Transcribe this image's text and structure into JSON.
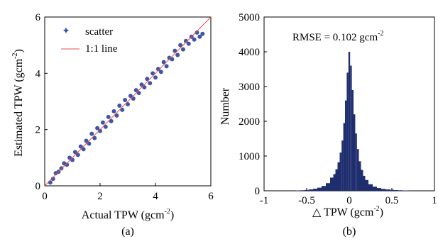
{
  "chart_data": [
    {
      "panel_label": "(a)",
      "type": "scatter",
      "xlabel": "Actual TPW (gcm",
      "xlabel_sup": "-2",
      "xlabel_close": ")",
      "ylabel": "Estimated  TPW (gcm",
      "ylabel_sup": "-2",
      "ylabel_close": ")",
      "xlim": [
        0,
        6
      ],
      "ylim": [
        0,
        6
      ],
      "xticks": [
        "0",
        "2",
        "4",
        "6"
      ],
      "yticks": [
        "0",
        "2",
        "4",
        "6"
      ],
      "legend": {
        "placement": "top-left",
        "entries": [
          "scatter",
          "1:1 line"
        ]
      },
      "series": [
        {
          "name": "scatter",
          "color": "#3f56a6",
          "points": [
            [
              0.2,
              0.12
            ],
            [
              0.3,
              0.25
            ],
            [
              0.4,
              0.45
            ],
            [
              0.5,
              0.5
            ],
            [
              0.6,
              0.62
            ],
            [
              0.7,
              0.8
            ],
            [
              0.8,
              0.75
            ],
            [
              0.9,
              1.0
            ],
            [
              1.0,
              0.92
            ],
            [
              1.1,
              1.2
            ],
            [
              1.2,
              1.1
            ],
            [
              1.3,
              1.4
            ],
            [
              1.4,
              1.3
            ],
            [
              1.5,
              1.6
            ],
            [
              1.6,
              1.5
            ],
            [
              1.7,
              1.85
            ],
            [
              1.8,
              1.7
            ],
            [
              1.9,
              2.05
            ],
            [
              2.0,
              1.95
            ],
            [
              2.1,
              2.25
            ],
            [
              2.2,
              2.1
            ],
            [
              2.3,
              2.45
            ],
            [
              2.4,
              2.3
            ],
            [
              2.5,
              2.65
            ],
            [
              2.6,
              2.5
            ],
            [
              2.7,
              2.85
            ],
            [
              2.8,
              2.7
            ],
            [
              2.9,
              3.05
            ],
            [
              3.0,
              2.9
            ],
            [
              3.1,
              3.2
            ],
            [
              3.2,
              3.1
            ],
            [
              3.3,
              3.4
            ],
            [
              3.4,
              3.3
            ],
            [
              3.5,
              3.6
            ],
            [
              3.6,
              3.5
            ],
            [
              3.7,
              3.8
            ],
            [
              3.8,
              3.65
            ],
            [
              3.9,
              4.0
            ],
            [
              4.0,
              3.85
            ],
            [
              4.1,
              4.15
            ],
            [
              4.2,
              4.05
            ],
            [
              4.3,
              4.4
            ],
            [
              4.4,
              4.25
            ],
            [
              4.5,
              4.55
            ],
            [
              4.6,
              4.5
            ],
            [
              4.7,
              4.8
            ],
            [
              4.8,
              4.65
            ],
            [
              4.9,
              5.0
            ],
            [
              5.0,
              4.85
            ],
            [
              5.1,
              5.15
            ],
            [
              5.2,
              5.05
            ],
            [
              5.3,
              5.3
            ],
            [
              5.4,
              5.2
            ],
            [
              5.5,
              5.45
            ],
            [
              5.6,
              5.3
            ],
            [
              5.7,
              5.4
            ]
          ]
        },
        {
          "name": "1:1 line",
          "color": "#e8504a",
          "x": [
            0,
            6
          ],
          "y": [
            0,
            6
          ]
        }
      ]
    },
    {
      "panel_label": "(b)",
      "type": "bar",
      "subtype": "histogram",
      "xlabel": "△ TPW (gcm",
      "xlabel_sup": "-2",
      "xlabel_close": ")",
      "ylabel": "Number",
      "xlim": [
        -1,
        1
      ],
      "ylim": [
        0,
        5000
      ],
      "xticks": [
        "-1",
        "-0.5",
        "0",
        "0.5",
        "1"
      ],
      "yticks": [
        "0",
        "1000",
        "2000",
        "3000",
        "4000",
        "5000"
      ],
      "annotation": "RMSE = 0.102 gcm",
      "annotation_sup": "-2",
      "color": "#1f2e6e",
      "x": [
        -0.6,
        -0.55,
        -0.5,
        -0.45,
        -0.4,
        -0.35,
        -0.3,
        -0.25,
        -0.2,
        -0.175,
        -0.15,
        -0.125,
        -0.1,
        -0.08,
        -0.06,
        -0.04,
        -0.02,
        0.0,
        0.02,
        0.04,
        0.06,
        0.08,
        0.1,
        0.125,
        0.15,
        0.175,
        0.2,
        0.25,
        0.3,
        0.35,
        0.4,
        0.45,
        0.5,
        0.55,
        0.6,
        0.65,
        0.7
      ],
      "values": [
        10,
        15,
        25,
        40,
        60,
        90,
        140,
        220,
        380,
        480,
        620,
        820,
        1100,
        1450,
        1950,
        2600,
        3400,
        4000,
        3600,
        2900,
        2200,
        1650,
        1200,
        850,
        600,
        430,
        310,
        190,
        120,
        80,
        55,
        40,
        30,
        20,
        15,
        10,
        5
      ]
    }
  ]
}
